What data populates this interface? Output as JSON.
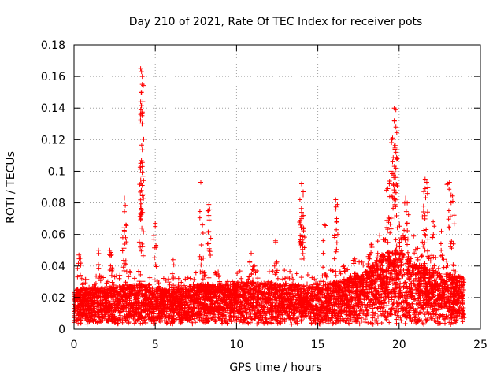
{
  "chart_data": {
    "type": "scatter",
    "title": "Day 210 of 2021, Rate Of TEC Index for receiver pots",
    "xlabel": "GPS time / hours",
    "ylabel": "ROTI / TECUs",
    "xlim": [
      0,
      25
    ],
    "ylim": [
      0,
      0.18
    ],
    "xticks": [
      0,
      5,
      10,
      15,
      20,
      25
    ],
    "yticks": [
      0,
      0.02,
      0.04,
      0.06,
      0.08,
      0.1,
      0.12,
      0.14,
      0.16,
      0.18
    ],
    "xtick_labels": [
      "0",
      "5",
      "10",
      "15",
      "20",
      "25"
    ],
    "ytick_labels": [
      "0",
      "0.02",
      "0.04",
      "0.06",
      "0.08",
      "0.1",
      "0.12",
      "0.14",
      "0.16",
      "0.18"
    ],
    "grid": true,
    "marker": "+",
    "color": "#ff0000",
    "x_data_range": [
      0,
      24
    ],
    "baseline_band": [
      [
        0,
        0.022
      ],
      [
        1,
        0.024
      ],
      [
        2,
        0.023
      ],
      [
        3,
        0.025
      ],
      [
        4,
        0.026
      ],
      [
        5,
        0.023
      ],
      [
        6,
        0.022
      ],
      [
        7,
        0.024
      ],
      [
        8,
        0.026
      ],
      [
        9,
        0.025
      ],
      [
        10,
        0.027
      ],
      [
        11,
        0.027
      ],
      [
        12,
        0.026
      ],
      [
        13,
        0.026
      ],
      [
        14,
        0.025
      ],
      [
        15,
        0.024
      ],
      [
        16,
        0.027
      ],
      [
        17,
        0.03
      ],
      [
        18,
        0.034
      ],
      [
        19,
        0.045
      ],
      [
        20,
        0.048
      ],
      [
        21,
        0.04
      ],
      [
        22,
        0.034
      ],
      [
        23,
        0.032
      ],
      [
        24,
        0.03
      ]
    ],
    "notable_points": [
      [
        4.1,
        0.165
      ],
      [
        4.15,
        0.163
      ],
      [
        4.2,
        0.16
      ],
      [
        4.2,
        0.155
      ],
      [
        4.15,
        0.15
      ],
      [
        4.1,
        0.144
      ],
      [
        4.1,
        0.136
      ],
      [
        4.2,
        0.13
      ],
      [
        4.1,
        0.105
      ],
      [
        4.2,
        0.103
      ],
      [
        4.2,
        0.091
      ],
      [
        4.1,
        0.078
      ],
      [
        4.2,
        0.074
      ],
      [
        3.1,
        0.083
      ],
      [
        3.2,
        0.066
      ],
      [
        3.1,
        0.062
      ],
      [
        3.0,
        0.058
      ],
      [
        7.8,
        0.093
      ],
      [
        8.3,
        0.079
      ],
      [
        8.35,
        0.076
      ],
      [
        8.3,
        0.072
      ],
      [
        7.9,
        0.066
      ],
      [
        5.0,
        0.067
      ],
      [
        5.0,
        0.065
      ],
      [
        12.4,
        0.056
      ],
      [
        14.0,
        0.092
      ],
      [
        14.1,
        0.087
      ],
      [
        14.1,
        0.085
      ],
      [
        13.9,
        0.082
      ],
      [
        14.0,
        0.074
      ],
      [
        14.1,
        0.072
      ],
      [
        14.0,
        0.07
      ],
      [
        16.1,
        0.082
      ],
      [
        16.2,
        0.079
      ],
      [
        16.1,
        0.076
      ],
      [
        15.4,
        0.066
      ],
      [
        19.7,
        0.14
      ],
      [
        19.8,
        0.139
      ],
      [
        19.7,
        0.132
      ],
      [
        19.8,
        0.128
      ],
      [
        19.6,
        0.121
      ],
      [
        19.7,
        0.116
      ],
      [
        19.8,
        0.112
      ],
      [
        19.6,
        0.106
      ],
      [
        19.8,
        0.102
      ],
      [
        19.5,
        0.1
      ],
      [
        19.4,
        0.092
      ],
      [
        19.3,
        0.089
      ],
      [
        20.4,
        0.083
      ],
      [
        20.5,
        0.08
      ],
      [
        21.6,
        0.095
      ],
      [
        21.7,
        0.093
      ],
      [
        21.6,
        0.089
      ],
      [
        21.5,
        0.078
      ],
      [
        23.1,
        0.093
      ],
      [
        23.0,
        0.092
      ],
      [
        23.2,
        0.085
      ],
      [
        23.3,
        0.081
      ],
      [
        22.1,
        0.068
      ],
      [
        22.6,
        0.062
      ],
      [
        0.3,
        0.047
      ],
      [
        0.4,
        0.045
      ],
      [
        1.5,
        0.05
      ],
      [
        2.2,
        0.05
      ],
      [
        2.3,
        0.047
      ],
      [
        6.1,
        0.044
      ],
      [
        10.9,
        0.048
      ],
      [
        11.1,
        0.04
      ],
      [
        16.6,
        0.04
      ],
      [
        18.1,
        0.046
      ]
    ]
  }
}
